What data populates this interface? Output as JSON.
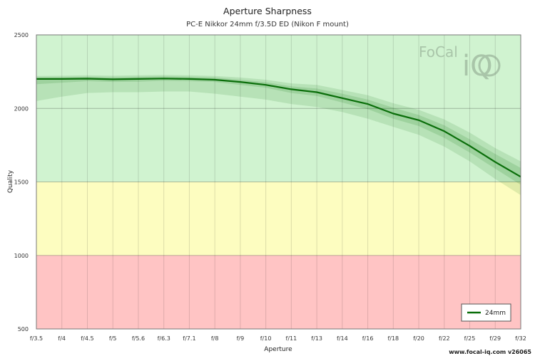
{
  "chart_data": {
    "type": "line",
    "title": "Aperture Sharpness",
    "subtitle": "PC-E Nikkor 24mm f/3.5D ED (Nikon F mount)",
    "xlabel": "Aperture",
    "ylabel": "Quality",
    "ylim": [
      500,
      2500
    ],
    "yticks": [
      500,
      1000,
      1500,
      2000,
      2500
    ],
    "categories": [
      "f/3.5",
      "f/4",
      "f/4.5",
      "f/5",
      "f/5.6",
      "f/6.3",
      "f/7.1",
      "f/8",
      "f/9",
      "f/10",
      "f/11",
      "f/13",
      "f/14",
      "f/16",
      "f/18",
      "f/20",
      "f/22",
      "f/25",
      "f/29",
      "f/32"
    ],
    "series": [
      {
        "name": "24mm",
        "color": "#0a6e0a",
        "values": [
          2200,
          2200,
          2202,
          2198,
          2200,
          2203,
          2200,
          2195,
          2180,
          2160,
          2130,
          2110,
          2070,
          2030,
          1965,
          1920,
          1845,
          1745,
          1635,
          1535
        ],
        "band_inner_upper": [
          2210,
          2212,
          2215,
          2212,
          2215,
          2218,
          2215,
          2210,
          2195,
          2178,
          2150,
          2135,
          2100,
          2060,
          2005,
          1955,
          1885,
          1790,
          1690,
          1595
        ],
        "band_inner_lower": [
          2165,
          2175,
          2185,
          2180,
          2182,
          2188,
          2185,
          2180,
          2160,
          2140,
          2105,
          2085,
          2040,
          1995,
          1930,
          1880,
          1800,
          1700,
          1590,
          1480
        ],
        "band_outer_upper": [
          2220,
          2222,
          2225,
          2222,
          2225,
          2228,
          2225,
          2220,
          2210,
          2195,
          2170,
          2160,
          2125,
          2090,
          2035,
          1990,
          1925,
          1835,
          1730,
          1640
        ],
        "band_outer_lower": [
          2050,
          2080,
          2105,
          2110,
          2110,
          2115,
          2115,
          2100,
          2080,
          2060,
          2030,
          2010,
          1975,
          1930,
          1875,
          1820,
          1740,
          1640,
          1520,
          1410
        ]
      }
    ],
    "zones": [
      {
        "from": 1500,
        "to": 2500,
        "color": "#d0f3d0"
      },
      {
        "from": 1000,
        "to": 1500,
        "color": "#fdfdc0"
      },
      {
        "from": 500,
        "to": 1000,
        "color": "#ffc4c4"
      }
    ],
    "grid": true,
    "legend_position": "bottom-right"
  },
  "footer": "www.focal-iq.com  v26065",
  "logo": {
    "line1": "FoCal",
    "line2": "iQ"
  }
}
